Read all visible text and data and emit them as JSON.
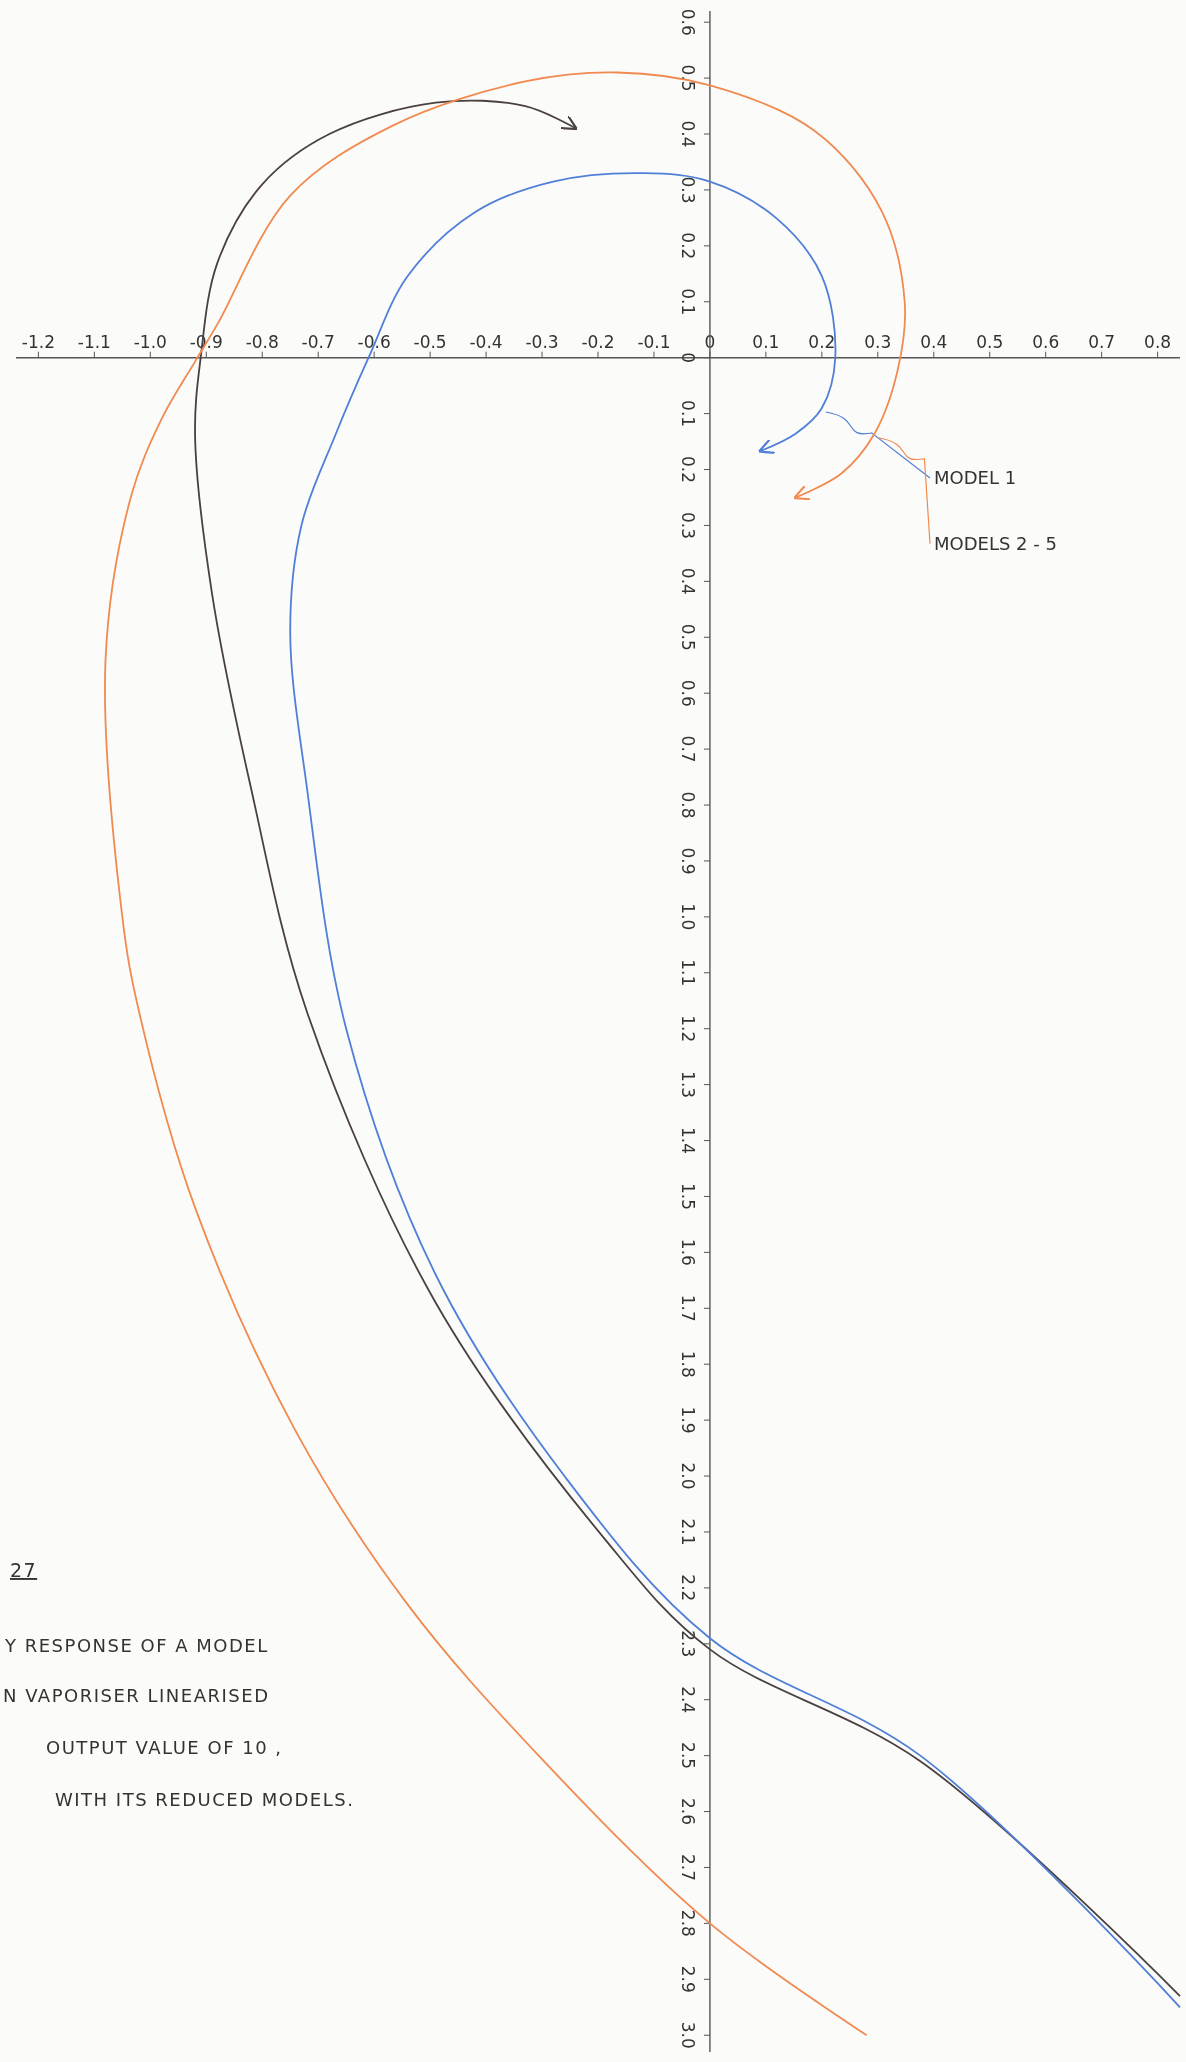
{
  "chart_data": {
    "type": "line",
    "xlim": [
      -1.24,
      0.84
    ],
    "ylim": [
      -3.03,
      0.62
    ],
    "xticks": [
      {
        "value": -1.2,
        "label": "-1.2"
      },
      {
        "value": -1.1,
        "label": "-1.1"
      },
      {
        "value": -1.0,
        "label": "-1.0"
      },
      {
        "value": -0.9,
        "label": "-0.9"
      },
      {
        "value": -0.8,
        "label": "-0.8"
      },
      {
        "value": -0.7,
        "label": "-0.7"
      },
      {
        "value": -0.6,
        "label": "-0.6"
      },
      {
        "value": -0.5,
        "label": "-0.5"
      },
      {
        "value": -0.4,
        "label": "-0.4"
      },
      {
        "value": -0.3,
        "label": "-0.3"
      },
      {
        "value": -0.2,
        "label": "-0.2"
      },
      {
        "value": -0.1,
        "label": "-0.1"
      },
      {
        "value": 0,
        "label": "0"
      },
      {
        "value": 0.1,
        "label": "0.1"
      },
      {
        "value": 0.2,
        "label": "0.2"
      },
      {
        "value": 0.3,
        "label": "0.3"
      },
      {
        "value": 0.4,
        "label": "0.4"
      },
      {
        "value": 0.5,
        "label": "0.5"
      },
      {
        "value": 0.6,
        "label": "0.6"
      },
      {
        "value": 0.7,
        "label": "0.7"
      },
      {
        "value": 0.8,
        "label": "0.8"
      }
    ],
    "yticks": [
      {
        "value": 0.6,
        "label": "0.6"
      },
      {
        "value": 0.5,
        "label": "0.5"
      },
      {
        "value": 0.4,
        "label": "0.4"
      },
      {
        "value": 0.3,
        "label": "0.3"
      },
      {
        "value": 0.2,
        "label": "0.2"
      },
      {
        "value": 0.1,
        "label": "0.1"
      },
      {
        "value": 0,
        "label": "0"
      },
      {
        "value": -0.1,
        "label": "0.1"
      },
      {
        "value": -0.2,
        "label": "0.2"
      },
      {
        "value": -0.3,
        "label": "0.3"
      },
      {
        "value": -0.4,
        "label": "0.4"
      },
      {
        "value": -0.5,
        "label": "0.5"
      },
      {
        "value": -0.6,
        "label": "0.6"
      },
      {
        "value": -0.7,
        "label": "0.7"
      },
      {
        "value": -0.8,
        "label": "0.8"
      },
      {
        "value": -0.9,
        "label": "0.9"
      },
      {
        "value": -1.0,
        "label": "1.0"
      },
      {
        "value": -1.1,
        "label": "1.1"
      },
      {
        "value": -1.2,
        "label": "1.2"
      },
      {
        "value": -1.3,
        "label": "1.3"
      },
      {
        "value": -1.4,
        "label": "1.4"
      },
      {
        "value": -1.5,
        "label": "1.5"
      },
      {
        "value": -1.6,
        "label": "1.6"
      },
      {
        "value": -1.7,
        "label": "1.7"
      },
      {
        "value": -1.8,
        "label": "1.8"
      },
      {
        "value": -1.9,
        "label": "1.9"
      },
      {
        "value": -2.0,
        "label": "2.0"
      },
      {
        "value": -2.1,
        "label": "2.1"
      },
      {
        "value": -2.2,
        "label": "2.2"
      },
      {
        "value": -2.3,
        "label": "2.3"
      },
      {
        "value": -2.4,
        "label": "2.4"
      },
      {
        "value": -2.5,
        "label": "2.5"
      },
      {
        "value": -2.6,
        "label": "2.6"
      },
      {
        "value": -2.7,
        "label": "2.7"
      },
      {
        "value": -2.8,
        "label": "2.8"
      },
      {
        "value": -2.9,
        "label": "2.9"
      },
      {
        "value": -3.0,
        "label": "3.0"
      }
    ],
    "grid": false,
    "legend": false,
    "marker": "none",
    "line_style": "solid",
    "series": [
      {
        "color": "#4a4040",
        "x": [
          0.84,
          0.376,
          0,
          -0.19,
          -0.49,
          -0.72,
          -0.82,
          -0.89,
          -0.92,
          -0.91,
          -0.88,
          -0.8,
          -0.68,
          -0.49,
          -0.33,
          -0.24
        ],
        "values": [
          -2.93,
          -2.51,
          -2.31,
          -2.11,
          -1.69,
          -1.17,
          -0.77,
          -0.42,
          -0.14,
          0,
          0.17,
          0.31,
          0.4,
          0.456,
          0.45,
          0.41
        ]
      },
      {
        "name": "MODEL 1",
        "color": "#4f7fd8",
        "x": [
          0.84,
          0.376,
          0,
          -0.26,
          -0.49,
          -0.65,
          -0.72,
          -0.75,
          -0.73,
          -0.67,
          -0.61,
          -0.54,
          -0.42,
          -0.28,
          -0.118,
          0,
          0.118,
          0.2,
          0.224,
          0.2,
          0.153,
          0.09
        ],
        "values": [
          -2.95,
          -2.5,
          -2.29,
          -2.0,
          -1.64,
          -1.2,
          -0.77,
          -0.49,
          -0.3,
          -0.14,
          0,
          0.146,
          0.26,
          0.315,
          0.33,
          0.315,
          0.25,
          0.146,
          0,
          -0.09,
          -0.136,
          -0.167
        ]
      },
      {
        "name": "MODELS 2 - 5",
        "color": "#f08a50",
        "x": [
          0.28,
          0,
          -0.306,
          -0.54,
          -0.74,
          -0.92,
          -1.02,
          -1.05,
          -1.08,
          -1.035,
          -0.98,
          -0.92,
          -0.88,
          -0.75,
          -0.565,
          -0.33,
          -0.165,
          0,
          0.188,
          0.306,
          0.348,
          0.336,
          0.294,
          0.235,
          0.153
        ],
        "values": [
          -3.0,
          -2.8,
          -2.5,
          -2.23,
          -1.92,
          -1.52,
          -1.17,
          -1.0,
          -0.54,
          -0.25,
          -0.11,
          -0.007,
          0.06,
          0.29,
          0.416,
          0.494,
          0.51,
          0.487,
          0.405,
          0.264,
          0.1,
          -0.02,
          -0.136,
          -0.207,
          -0.25
        ]
      }
    ],
    "annotations": [
      "27",
      "Y RESPONSE OF A MODEL",
      "N VAPORISER LINEARISED",
      "OUTPUT VALUE OF 10 ,",
      "WITH ITS REDUCED MODELS."
    ]
  }
}
